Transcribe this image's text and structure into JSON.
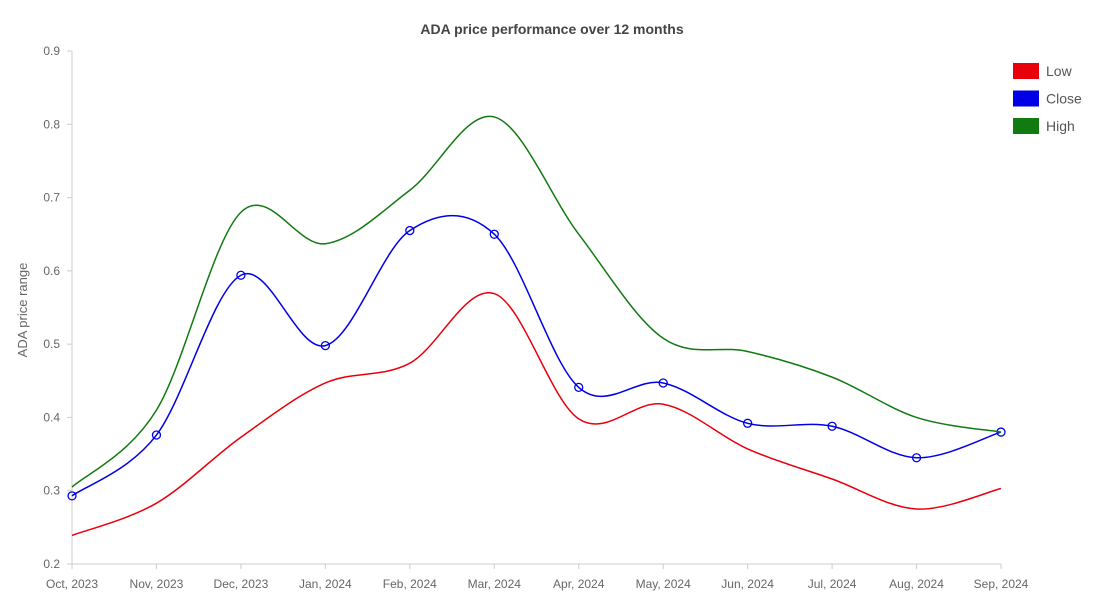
{
  "chart_data": {
    "type": "line",
    "title": "ADA price performance over 12 months",
    "xlabel": "",
    "ylabel": "ADA price range",
    "categories": [
      "Oct, 2023",
      "Nov, 2023",
      "Dec, 2023",
      "Jan, 2024",
      "Feb, 2024",
      "Mar, 2024",
      "Apr, 2024",
      "May, 2024",
      "Jun, 2024",
      "Jul, 2024",
      "Aug, 2024",
      "Sep, 2024"
    ],
    "ylim": [
      0.2,
      0.9
    ],
    "yticks": [
      "0.2",
      "0.3",
      "0.4",
      "0.5",
      "0.6",
      "0.7",
      "0.8",
      "0.9"
    ],
    "legend_position": "top-right",
    "grid": false,
    "series": [
      {
        "name": "Low",
        "color": "#e8000b",
        "markers": false,
        "values": [
          0.239,
          0.283,
          0.373,
          0.447,
          0.474,
          0.569,
          0.398,
          0.418,
          0.357,
          0.316,
          0.275,
          0.303
        ]
      },
      {
        "name": "Close",
        "color": "#0000e6",
        "markers": true,
        "values": [
          0.293,
          0.376,
          0.594,
          0.498,
          0.655,
          0.65,
          0.441,
          0.447,
          0.392,
          0.388,
          0.345,
          0.38
        ]
      },
      {
        "name": "High",
        "color": "#117a11",
        "markers": false,
        "values": [
          0.305,
          0.41,
          0.68,
          0.637,
          0.71,
          0.81,
          0.65,
          0.508,
          0.49,
          0.455,
          0.4,
          0.38
        ]
      }
    ]
  }
}
